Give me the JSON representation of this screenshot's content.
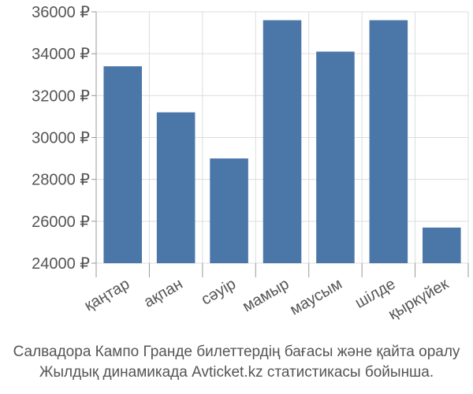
{
  "chart_data": {
    "type": "bar",
    "categories": [
      "қаңтар",
      "ақпан",
      "сәуір",
      "мамыр",
      "маусым",
      "шілде",
      "қыркүйек"
    ],
    "values": [
      33400,
      31200,
      29000,
      35600,
      34100,
      35600,
      25700
    ],
    "ylim": [
      24000,
      36000
    ],
    "yticks": [
      24000,
      26000,
      28000,
      30000,
      32000,
      34000,
      36000
    ],
    "ytick_labels": [
      "24000 ₽",
      "26000 ₽",
      "28000 ₽",
      "30000 ₽",
      "32000 ₽",
      "34000 ₽",
      "36000 ₽"
    ],
    "bar_color": "#4a76a8",
    "grid": true,
    "xlabel": "",
    "ylabel": ""
  },
  "caption": {
    "line1": "Салвадора Кампо Гранде билеттердің бағасы және қайта оралу",
    "line2": "Жылдық динамикада Avticket.kz статистикасы бойынша."
  }
}
